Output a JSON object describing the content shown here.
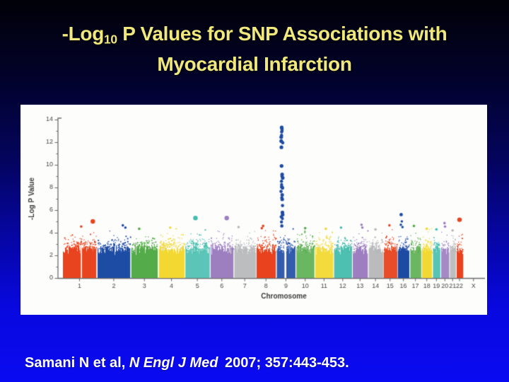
{
  "slide": {
    "title": {
      "prefix": "-Log",
      "subscript": "10",
      "line1_rest": " P Values for SNP Associations with",
      "line2": "Myocardial Infarction",
      "color": "#f0e87a"
    },
    "citation": {
      "part1": "Samani N et al, ",
      "journal_italic": "N Engl J Med",
      "part2": " 2007; 357:443-453."
    },
    "background": {
      "top": "#010108",
      "bottom": "#0a0af2"
    }
  },
  "chart_data": {
    "type": "scatter",
    "subtype": "manhattan",
    "title": "",
    "xlabel": "Chromosome",
    "ylabel": "-Log P Value",
    "ylim": [
      0,
      14
    ],
    "yticks": [
      0,
      2,
      4,
      6,
      8,
      10,
      12,
      14
    ],
    "grid": false,
    "legend": "none",
    "panel_bg": "#fdfdfc",
    "axis_color": "#6e6e6e",
    "tick_label_color": "#4a4a4a",
    "palette": {
      "red": "#e8441f",
      "blue": "#1e4ca4",
      "green": "#55ab49",
      "yellow": "#f2d832",
      "teal": "#42bcac",
      "purple": "#9d7fc1",
      "gray": "#b4b6b8"
    },
    "color_cycle": [
      "red",
      "blue",
      "green",
      "yellow",
      "teal",
      "purple",
      "gray"
    ],
    "chromosomes": [
      {
        "label": "1",
        "size_mb": 249
      },
      {
        "label": "2",
        "size_mb": 243
      },
      {
        "label": "3",
        "size_mb": 198
      },
      {
        "label": "4",
        "size_mb": 191
      },
      {
        "label": "5",
        "size_mb": 181
      },
      {
        "label": "6",
        "size_mb": 171
      },
      {
        "label": "7",
        "size_mb": 159
      },
      {
        "label": "8",
        "size_mb": 146
      },
      {
        "label": "9",
        "size_mb": 141
      },
      {
        "label": "10",
        "size_mb": 136
      },
      {
        "label": "11",
        "size_mb": 135
      },
      {
        "label": "12",
        "size_mb": 134
      },
      {
        "label": "13",
        "size_mb": 115
      },
      {
        "label": "14",
        "size_mb": 107
      },
      {
        "label": "15",
        "size_mb": 102
      },
      {
        "label": "16",
        "size_mb": 90
      },
      {
        "label": "17",
        "size_mb": 83
      },
      {
        "label": "18",
        "size_mb": 80
      },
      {
        "label": "19",
        "size_mb": 59
      },
      {
        "label": "20",
        "size_mb": 63
      },
      {
        "label": "21",
        "size_mb": 48
      },
      {
        "label": "22",
        "size_mb": 51
      },
      {
        "label": "X",
        "size_mb": 150,
        "no_data": true
      }
    ],
    "baseline_band": {
      "solid_top_range": [
        2.0,
        3.3
      ],
      "speckle_max": 4.42
    },
    "chr9_peak": {
      "chr": "9",
      "x_frac": 0.28,
      "values": [
        13.3,
        13.15,
        13.0,
        12.9,
        12.6,
        12.45,
        12.1,
        11.95,
        11.55,
        9.9,
        9.15,
        9.0,
        8.85,
        8.55,
        8.25,
        8.05,
        7.95,
        7.65,
        7.35,
        7.1,
        6.95,
        6.4,
        5.8,
        5.6,
        5.4,
        5.25,
        4.95,
        4.6
      ]
    },
    "notable_points": [
      {
        "chr": "1",
        "x_frac": 0.9,
        "value": 5.0,
        "size": "large"
      },
      {
        "chr": "1",
        "x_frac": 0.55,
        "value": 4.55,
        "size": "small"
      },
      {
        "chr": "2",
        "x_frac": 0.78,
        "value": 4.65,
        "size": "small"
      },
      {
        "chr": "2",
        "x_frac": 0.86,
        "value": 4.45,
        "size": "small"
      },
      {
        "chr": "3",
        "x_frac": 0.3,
        "value": 4.35,
        "size": "small"
      },
      {
        "chr": "4",
        "x_frac": 0.45,
        "value": 4.45,
        "size": "small"
      },
      {
        "chr": "5",
        "x_frac": 0.42,
        "value": 5.3,
        "size": "large"
      },
      {
        "chr": "6",
        "x_frac": 0.72,
        "value": 5.3,
        "size": "large"
      },
      {
        "chr": "7",
        "x_frac": 0.2,
        "value": 4.5,
        "size": "small"
      },
      {
        "chr": "8",
        "x_frac": 0.35,
        "value": 4.6,
        "size": "small"
      },
      {
        "chr": "8",
        "x_frac": 0.28,
        "value": 4.4,
        "size": "small"
      },
      {
        "chr": "10",
        "x_frac": 0.5,
        "value": 4.4,
        "size": "small"
      },
      {
        "chr": "11",
        "x_frac": 0.6,
        "value": 4.35,
        "size": "small"
      },
      {
        "chr": "12",
        "x_frac": 0.4,
        "value": 4.45,
        "size": "small"
      },
      {
        "chr": "13",
        "x_frac": 0.6,
        "value": 4.7,
        "size": "small"
      },
      {
        "chr": "13",
        "x_frac": 0.66,
        "value": 4.45,
        "size": "small"
      },
      {
        "chr": "14",
        "x_frac": 0.5,
        "value": 4.3,
        "size": "small"
      },
      {
        "chr": "15",
        "x_frac": 0.45,
        "value": 4.65,
        "size": "small"
      },
      {
        "chr": "16",
        "x_frac": 0.3,
        "value": 5.6,
        "size": "medium"
      },
      {
        "chr": "16",
        "x_frac": 0.36,
        "value": 5.0,
        "size": "small"
      },
      {
        "chr": "16",
        "x_frac": 0.27,
        "value": 4.7,
        "size": "small"
      },
      {
        "chr": "16",
        "x_frac": 0.42,
        "value": 4.5,
        "size": "small"
      },
      {
        "chr": "17",
        "x_frac": 0.35,
        "value": 4.6,
        "size": "small"
      },
      {
        "chr": "18",
        "x_frac": 0.5,
        "value": 4.35,
        "size": "small"
      },
      {
        "chr": "19",
        "x_frac": 0.5,
        "value": 4.3,
        "size": "small"
      },
      {
        "chr": "20",
        "x_frac": 0.45,
        "value": 4.85,
        "size": "small"
      },
      {
        "chr": "20",
        "x_frac": 0.52,
        "value": 4.55,
        "size": "small"
      },
      {
        "chr": "21",
        "x_frac": 0.5,
        "value": 4.2,
        "size": "small"
      },
      {
        "chr": "22",
        "x_frac": 0.5,
        "value": 5.15,
        "size": "large"
      }
    ],
    "centromere_gaps": [
      {
        "chr": "1",
        "x_frac": 0.54,
        "w": 1.6
      },
      {
        "chr": "9",
        "x_frac": 0.42,
        "w": 2.6
      }
    ]
  }
}
